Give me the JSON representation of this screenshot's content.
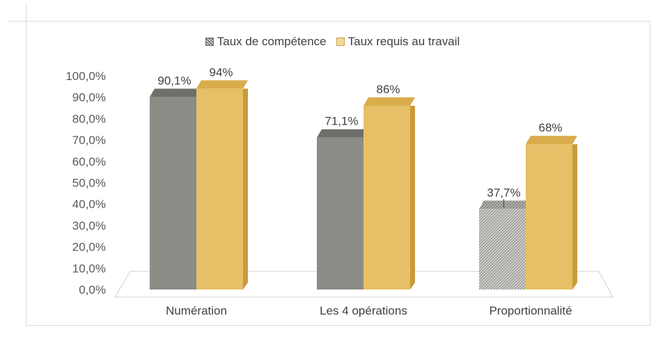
{
  "chart_data": {
    "type": "bar",
    "categories": [
      "Numération",
      "Les 4 opérations",
      "Proportionnalité"
    ],
    "series": [
      {
        "name": "Taux de compétence",
        "values": [
          90.1,
          71.1,
          37.7
        ],
        "labels": [
          "90,1%",
          "71,1%",
          "37,7%"
        ],
        "color": "#8c8c86",
        "top_color": "#6f6f6a",
        "side_color": "#7a7a75"
      },
      {
        "name": "Taux requis au travail",
        "values": [
          94,
          86,
          68
        ],
        "labels": [
          "94%",
          "86%",
          "68%"
        ],
        "color": "#e6bf67",
        "top_color": "#d9ac4c",
        "side_color": "#c99a3a"
      }
    ],
    "y_ticks": [
      "0,0%",
      "10,0%",
      "20,0%",
      "30,0%",
      "40,0%",
      "50,0%",
      "60,0%",
      "70,0%",
      "80,0%",
      "90,0%",
      "100,0%"
    ],
    "ylim": [
      0,
      100
    ],
    "legend_position": "top",
    "grid": false,
    "style": "3d-column"
  }
}
